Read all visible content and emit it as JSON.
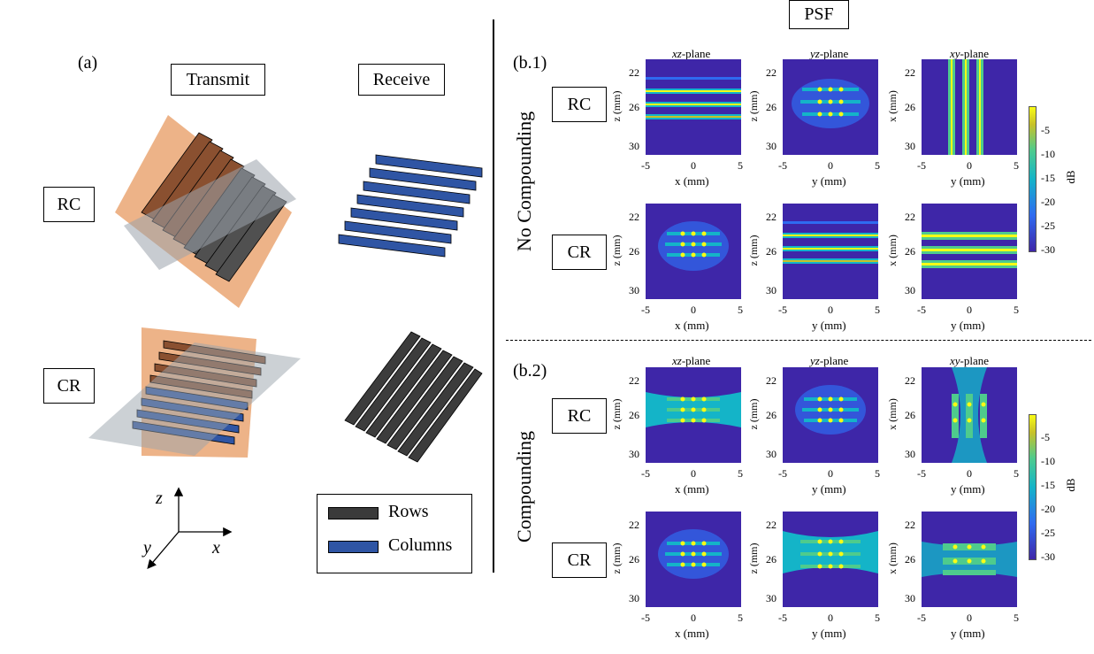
{
  "title": "PSF",
  "part_a": {
    "label": "(a)",
    "col_transmit": "Transmit",
    "col_receive": "Receive",
    "row_rc": "RC",
    "row_cr": "CR",
    "axes": {
      "z": "z",
      "y": "y",
      "x": "x"
    },
    "legend": {
      "rows": "Rows",
      "columns": "Columns",
      "rows_color": "#3a3a3a",
      "columns_color": "#2f55a4"
    },
    "colors": {
      "rows_bar": "#3c3c3c",
      "columns_bar": "#2f55a4",
      "plane_orange": "#e8a06a",
      "plane_gray": "#9aa3ab",
      "bar_brown": "#8a5030"
    }
  },
  "part_b1": {
    "label": "(b.1)",
    "side_label": "No Compounding",
    "rows": [
      "RC",
      "CR"
    ],
    "plane_titles": [
      {
        "italic": "xz",
        "rest": "-plane"
      },
      {
        "italic": "yz",
        "rest": "-plane"
      },
      {
        "italic": "xy",
        "rest": "-plane"
      }
    ]
  },
  "part_b2": {
    "label": "(b.2)",
    "side_label": "Compounding",
    "rows": [
      "RC",
      "CR"
    ],
    "plane_titles": [
      {
        "italic": "xz",
        "rest": "-plane"
      },
      {
        "italic": "yz",
        "rest": "-plane"
      },
      {
        "italic": "xy",
        "rest": "-plane"
      }
    ]
  },
  "axes_text": {
    "xlabel_x": "x (mm)",
    "xlabel_y": "y (mm)",
    "ylabel_z": "z (mm)",
    "ylabel_x": "x (mm)",
    "z_ticks": [
      "22",
      "26",
      "30"
    ],
    "x_ticks": [
      "-5",
      "0",
      "5"
    ]
  },
  "colorbar": {
    "unit": "dB",
    "ticks": [
      "-5",
      "-10",
      "-15",
      "-20",
      "-25",
      "-30"
    ],
    "colors": [
      "#3e26a8",
      "#2f6bf0",
      "#14b4c8",
      "#4ecb8d",
      "#c8c129",
      "#f9fb15"
    ]
  },
  "heatmap_colors": {
    "background": "#3e26a8",
    "mid": "#2fb4d0",
    "high": "#f9fb15",
    "green": "#5fce7a"
  }
}
